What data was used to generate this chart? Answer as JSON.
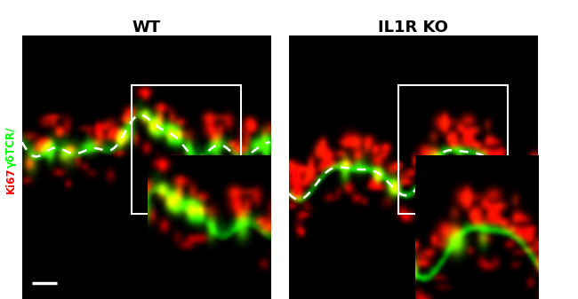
{
  "title_left": "WT",
  "title_right": "IL1R KO",
  "ylabel_green": "γδTCR/",
  "ylabel_red": "Ki67",
  "title_fontsize": 13,
  "title_fontweight": "bold",
  "fig_bg": "#ffffff",
  "panel_bg": "#000000",
  "scale_bar_color": "#ffffff",
  "dashed_line_color": "#ffffff",
  "inset_border_color": "#ffffff",
  "label_green_color": "#00ff00",
  "label_red_color": "#ff0000"
}
